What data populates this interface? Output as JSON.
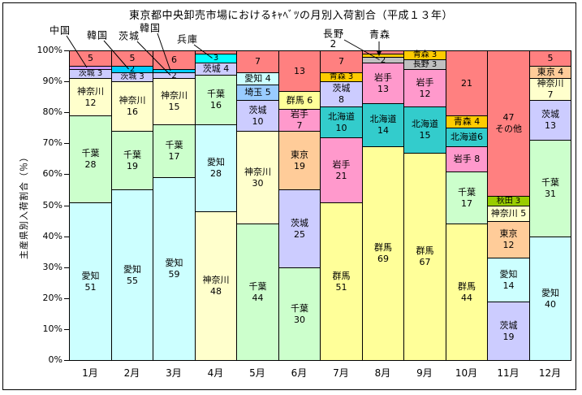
{
  "title": "東京都中央卸売市場におけるｷｬﾍﾞﾂの月別入荷割合（平成１３年）",
  "colors": {
    "その他": "#FF8080",
    "中国": "#CC99FF",
    "韓国": "#00CCFF",
    "兵庫": "#00FFFF",
    "茨城": "#CCCCFF",
    "神奈川": "#FFFFCC",
    "千葉": "#CCFFCC",
    "愛知": "#CCFFFF",
    "埼玉": "#99CCFF",
    "群馬": "#FFFF99",
    "岩手": "#FF99CC",
    "東京": "#FFCC99",
    "北海道": "#33CCCC",
    "青森": "#FFCC00",
    "長野": "#C0C0C0",
    "秋田": "#99CC00"
  },
  "callouts": [
    {
      "label": "中国",
      "month": "1月",
      "target": "中国"
    },
    {
      "label": "韓国",
      "month": "2月",
      "target": "韓国"
    },
    {
      "label": "茨城",
      "month": "3月",
      "target": "茨城"
    },
    {
      "label": "韓国",
      "month": "3月",
      "target": "韓国"
    },
    {
      "label": "兵庫",
      "month": "4月",
      "target": "兵庫"
    },
    {
      "label": "長野",
      "value": "2",
      "month": "8月",
      "target": "長野"
    },
    {
      "label": "青森",
      "month": "8月",
      "target": "青森"
    }
  ],
  "chart_data": {
    "type": "bar",
    "stacked": true,
    "percent": true,
    "title": "東京都中央卸売市場におけるｷｬﾍﾞﾂの月別入荷割合（平成１３年）",
    "xlabel": "",
    "ylabel": "主産県別入荷割合（％）",
    "ylim": [
      0,
      100
    ],
    "yticks": [
      "0%",
      "10%",
      "20%",
      "30%",
      "40%",
      "50%",
      "60%",
      "70%",
      "80%",
      "90%",
      "100%"
    ],
    "categories": [
      "1月",
      "2月",
      "3月",
      "4月",
      "5月",
      "6月",
      "7月",
      "8月",
      "9月",
      "10月",
      "11月",
      "12月"
    ],
    "legend_position": "none",
    "grid": false,
    "columns": [
      {
        "month": "1月",
        "segments": [
          {
            "name": "愛知",
            "value": 51,
            "label": [
              "愛知",
              "51"
            ]
          },
          {
            "name": "千葉",
            "value": 28,
            "label": [
              "千葉",
              "28"
            ]
          },
          {
            "name": "神奈川",
            "value": 12,
            "label": [
              "神奈川",
              "12"
            ]
          },
          {
            "name": "茨城",
            "value": 3,
            "label": [
              "茨城 3"
            ]
          },
          {
            "name": "中国",
            "value": 1,
            "label": []
          },
          {
            "name": "その他",
            "value": 5,
            "label": [
              "5"
            ]
          }
        ]
      },
      {
        "month": "2月",
        "segments": [
          {
            "name": "愛知",
            "value": 55,
            "label": [
              "愛知",
              "55"
            ]
          },
          {
            "name": "千葉",
            "value": 19,
            "label": [
              "千葉",
              "19"
            ]
          },
          {
            "name": "神奈川",
            "value": 16,
            "label": [
              "神奈川",
              "16"
            ]
          },
          {
            "name": "茨城",
            "value": 3,
            "label": [
              "茨城 3"
            ]
          },
          {
            "name": "韓国",
            "value": 2,
            "label": [
              "2"
            ]
          },
          {
            "name": "その他",
            "value": 5,
            "label": [
              "5"
            ]
          }
        ]
      },
      {
        "month": "3月",
        "segments": [
          {
            "name": "愛知",
            "value": 59,
            "label": [
              "愛知",
              "59"
            ]
          },
          {
            "name": "千葉",
            "value": 17,
            "label": [
              "千葉",
              "17"
            ]
          },
          {
            "name": "神奈川",
            "value": 15,
            "label": [
              "神奈川",
              "15"
            ]
          },
          {
            "name": "茨城",
            "value": 2,
            "label": [
              "2"
            ]
          },
          {
            "name": "韓国",
            "value": 1,
            "label": []
          },
          {
            "name": "その他",
            "value": 6,
            "label": [
              "6"
            ]
          }
        ]
      },
      {
        "month": "4月",
        "segments": [
          {
            "name": "神奈川",
            "value": 48,
            "label": [
              "神奈川",
              "48"
            ]
          },
          {
            "name": "愛知",
            "value": 28,
            "label": [
              "愛知",
              "28"
            ]
          },
          {
            "name": "千葉",
            "value": 16,
            "label": [
              "千葉",
              "16"
            ]
          },
          {
            "name": "茨城",
            "value": 4,
            "label": [
              "茨城 4"
            ]
          },
          {
            "name": "兵庫",
            "value": 3,
            "label": [
              "3"
            ]
          },
          {
            "name": "その他",
            "value": 1,
            "label": []
          }
        ]
      },
      {
        "month": "5月",
        "segments": [
          {
            "name": "千葉",
            "value": 44,
            "label": [
              "千葉",
              "44"
            ]
          },
          {
            "name": "神奈川",
            "value": 30,
            "label": [
              "神奈川",
              "30"
            ]
          },
          {
            "name": "茨城",
            "value": 10,
            "label": [
              "茨城",
              "10"
            ]
          },
          {
            "name": "埼玉",
            "value": 5,
            "label": [
              "埼玉 5"
            ]
          },
          {
            "name": "愛知",
            "value": 4,
            "label": [
              "愛知 4"
            ]
          },
          {
            "name": "その他",
            "value": 7,
            "label": [
              "7"
            ]
          }
        ]
      },
      {
        "month": "6月",
        "segments": [
          {
            "name": "千葉",
            "value": 30,
            "label": [
              "千葉",
              "30"
            ]
          },
          {
            "name": "茨城",
            "value": 25,
            "label": [
              "茨城",
              "25"
            ]
          },
          {
            "name": "東京",
            "value": 19,
            "label": [
              "東京",
              "19"
            ]
          },
          {
            "name": "岩手",
            "value": 7,
            "label": [
              "岩手",
              "7"
            ]
          },
          {
            "name": "群馬",
            "value": 6,
            "label": [
              "群馬 6"
            ]
          },
          {
            "name": "その他",
            "value": 13,
            "label": [
              "13"
            ]
          }
        ]
      },
      {
        "month": "7月",
        "segments": [
          {
            "name": "群馬",
            "value": 51,
            "label": [
              "群馬",
              "51"
            ]
          },
          {
            "name": "岩手",
            "value": 21,
            "label": [
              "岩手",
              "21"
            ]
          },
          {
            "name": "北海道",
            "value": 10,
            "label": [
              "北海道",
              "10"
            ]
          },
          {
            "name": "茨城",
            "value": 8,
            "label": [
              "茨城",
              "8"
            ]
          },
          {
            "name": "青森",
            "value": 3,
            "label": [
              "青森 3"
            ]
          },
          {
            "name": "その他",
            "value": 7,
            "label": [
              "7"
            ]
          }
        ]
      },
      {
        "month": "8月",
        "segments": [
          {
            "name": "群馬",
            "value": 69,
            "label": [
              "群馬",
              "69"
            ]
          },
          {
            "name": "北海道",
            "value": 14,
            "label": [
              "北海道",
              "14"
            ]
          },
          {
            "name": "岩手",
            "value": 13,
            "label": [
              "岩手",
              "13"
            ]
          },
          {
            "name": "長野",
            "value": 2,
            "label": [
              "2"
            ]
          },
          {
            "name": "青森",
            "value": 1,
            "label": []
          },
          {
            "name": "その他",
            "value": 1,
            "label": []
          }
        ]
      },
      {
        "month": "9月",
        "segments": [
          {
            "name": "群馬",
            "value": 67,
            "label": [
              "群馬",
              "67"
            ]
          },
          {
            "name": "北海道",
            "value": 15,
            "label": [
              "北海道",
              "15"
            ]
          },
          {
            "name": "岩手",
            "value": 12,
            "label": [
              "岩手",
              "12"
            ]
          },
          {
            "name": "長野",
            "value": 3,
            "label": [
              "長野 3"
            ]
          },
          {
            "name": "青森",
            "value": 3,
            "label": [
              "青森 3"
            ]
          }
        ]
      },
      {
        "month": "10月",
        "segments": [
          {
            "name": "群馬",
            "value": 44,
            "label": [
              "群馬",
              "44"
            ]
          },
          {
            "name": "千葉",
            "value": 17,
            "label": [
              "千葉",
              "17"
            ]
          },
          {
            "name": "岩手",
            "value": 8,
            "label": [
              "岩手 8"
            ]
          },
          {
            "name": "北海道",
            "value": 6,
            "label": [
              "北海道6"
            ]
          },
          {
            "name": "青森",
            "value": 4,
            "label": [
              "青森 4"
            ]
          },
          {
            "name": "その他",
            "value": 21,
            "label": [
              "21"
            ]
          }
        ]
      },
      {
        "month": "11月",
        "segments": [
          {
            "name": "茨城",
            "value": 19,
            "label": [
              "茨城",
              "19"
            ]
          },
          {
            "name": "愛知",
            "value": 14,
            "label": [
              "愛知",
              "14"
            ]
          },
          {
            "name": "東京",
            "value": 12,
            "label": [
              "東京",
              "12"
            ]
          },
          {
            "name": "神奈川",
            "value": 5,
            "label": [
              "神奈川 5"
            ]
          },
          {
            "name": "秋田",
            "value": 3,
            "label": [
              "秋田 3"
            ]
          },
          {
            "name": "その他",
            "value": 47,
            "label": [
              "47",
              "その他"
            ]
          }
        ]
      },
      {
        "month": "12月",
        "segments": [
          {
            "name": "愛知",
            "value": 40,
            "label": [
              "愛知",
              "40"
            ]
          },
          {
            "name": "千葉",
            "value": 31,
            "label": [
              "千葉",
              "31"
            ]
          },
          {
            "name": "茨城",
            "value": 13,
            "label": [
              "茨城",
              "13"
            ]
          },
          {
            "name": "神奈川",
            "value": 7,
            "label": [
              "神奈川",
              "7"
            ]
          },
          {
            "name": "東京",
            "value": 4,
            "label": [
              "東京 4"
            ]
          },
          {
            "name": "その他",
            "value": 5,
            "label": [
              "5"
            ]
          }
        ]
      }
    ]
  }
}
